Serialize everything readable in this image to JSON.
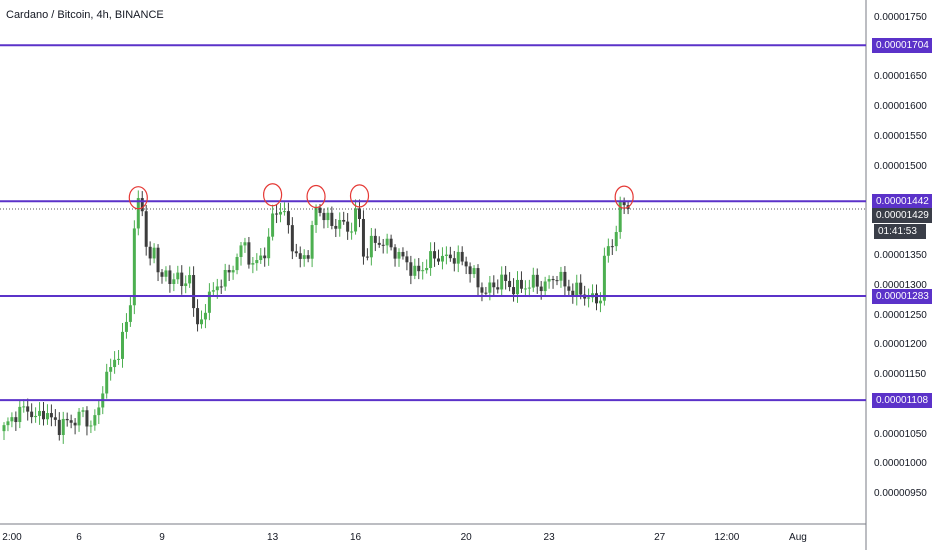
{
  "chart_data": {
    "type": "candlestick",
    "title": "Cardano / Bitcoin, 4h, BINANCE",
    "price_axis": {
      "min": 9e-06,
      "max": 1.78e-05,
      "ticks": [
        "0.00001750",
        "0.00001650",
        "0.00001600",
        "0.00001550",
        "0.00001500",
        "0.00001350",
        "0.00001300",
        "0.00001250",
        "0.00001200",
        "0.00001150",
        "0.00001050",
        "0.00001000",
        "0.00000950"
      ]
    },
    "time_axis": {
      "labels": [
        {
          "text": "2:00",
          "index": 0
        },
        {
          "text": "6",
          "index": 19
        },
        {
          "text": "9",
          "index": 40
        },
        {
          "text": "13",
          "index": 68
        },
        {
          "text": "16",
          "index": 89
        },
        {
          "text": "20",
          "index": 117
        },
        {
          "text": "23",
          "index": 138
        },
        {
          "text": "27",
          "index": 166
        },
        {
          "text": "12:00",
          "index": 183
        },
        {
          "text": "Aug",
          "index": 201
        }
      ]
    },
    "horizontal_lines": [
      {
        "price": 1.704e-05,
        "label": "0.00001704"
      },
      {
        "price": 1.442e-05,
        "label": "0.00001442"
      },
      {
        "price": 1.283e-05,
        "label": "0.00001283"
      },
      {
        "price": 1.108e-05,
        "label": "0.00001108"
      }
    ],
    "last_price": {
      "price": 1.429e-05,
      "label": "0.00001429",
      "countdown": "01:41:53"
    },
    "colors": {
      "up": "#26a69a",
      "up_candle": "#4caf50",
      "down": "#3c3c3c",
      "level_line": "#5b32c9",
      "annotation": "#e53935"
    },
    "annotations": [
      {
        "type": "circle",
        "index": 34,
        "price": 1.448e-05
      },
      {
        "type": "circle",
        "index": 68,
        "price": 1.453e-05
      },
      {
        "type": "circle",
        "index": 79,
        "price": 1.45e-05
      },
      {
        "type": "circle",
        "index": 90,
        "price": 1.451e-05
      },
      {
        "type": "circle",
        "index": 157,
        "price": 1.449e-05
      }
    ],
    "keypoints": [
      [
        0,
        1.06e-05
      ],
      [
        3,
        1.085e-05
      ],
      [
        6,
        1.095e-05
      ],
      [
        8,
        1.075e-05
      ],
      [
        10,
        1.09e-05
      ],
      [
        12,
        1.075e-05
      ],
      [
        14,
        1.065e-05
      ],
      [
        16,
        1.07e-05
      ],
      [
        18,
        1.075e-05
      ],
      [
        20,
        1.085e-05
      ],
      [
        22,
        1.065e-05
      ],
      [
        24,
        1.09e-05
      ],
      [
        25,
        1.135e-05
      ],
      [
        27,
        1.16e-05
      ],
      [
        29,
        1.19e-05
      ],
      [
        31,
        1.235e-05
      ],
      [
        32,
        1.275e-05
      ],
      [
        33,
        1.4e-05
      ],
      [
        34,
        1.44e-05
      ],
      [
        35,
        1.42e-05
      ],
      [
        36,
        1.38e-05
      ],
      [
        37,
        1.34e-05
      ],
      [
        38,
        1.36e-05
      ],
      [
        39,
        1.32e-05
      ],
      [
        40,
        1.33e-05
      ],
      [
        42,
        1.3e-05
      ],
      [
        44,
        1.33e-05
      ],
      [
        45,
        1.29e-05
      ],
      [
        46,
        1.3e-05
      ],
      [
        47,
        1.33e-05
      ],
      [
        48,
        1.26e-05
      ],
      [
        49,
        1.23e-05
      ],
      [
        50,
        1.24e-05
      ],
      [
        51,
        1.27e-05
      ],
      [
        53,
        1.29e-05
      ],
      [
        55,
        1.31e-05
      ],
      [
        57,
        1.32e-05
      ],
      [
        59,
        1.35e-05
      ],
      [
        61,
        1.37e-05
      ],
      [
        63,
        1.33e-05
      ],
      [
        65,
        1.35e-05
      ],
      [
        67,
        1.37e-05
      ],
      [
        68,
        1.42e-05
      ],
      [
        70,
        1.43e-05
      ],
      [
        72,
        1.4e-05
      ],
      [
        73,
        1.37e-05
      ],
      [
        74,
        1.35e-05
      ],
      [
        75,
        1.34e-05
      ],
      [
        77,
        1.36e-05
      ],
      [
        78,
        1.39e-05
      ],
      [
        79,
        1.43e-05
      ],
      [
        81,
        1.42e-05
      ],
      [
        83,
        1.4e-05
      ],
      [
        85,
        1.41e-05
      ],
      [
        87,
        1.39e-05
      ],
      [
        89,
        1.42e-05
      ],
      [
        90,
        1.41e-05
      ],
      [
        91,
        1.35e-05
      ],
      [
        93,
        1.37e-05
      ],
      [
        95,
        1.375e-05
      ],
      [
        98,
        1.365e-05
      ],
      [
        100,
        1.35e-05
      ],
      [
        102,
        1.34e-05
      ],
      [
        104,
        1.32e-05
      ],
      [
        106,
        1.33e-05
      ],
      [
        108,
        1.345e-05
      ],
      [
        110,
        1.35e-05
      ],
      [
        112,
        1.345e-05
      ],
      [
        114,
        1.35e-05
      ],
      [
        116,
        1.34e-05
      ],
      [
        118,
        1.33e-05
      ],
      [
        120,
        1.3e-05
      ],
      [
        122,
        1.29e-05
      ],
      [
        124,
        1.3e-05
      ],
      [
        126,
        1.31e-05
      ],
      [
        128,
        1.3e-05
      ],
      [
        130,
        1.295e-05
      ],
      [
        132,
        1.3e-05
      ],
      [
        134,
        1.305e-05
      ],
      [
        136,
        1.3e-05
      ],
      [
        138,
        1.305e-05
      ],
      [
        140,
        1.32e-05
      ],
      [
        142,
        1.3e-05
      ],
      [
        144,
        1.29e-05
      ],
      [
        146,
        1.29e-05
      ],
      [
        148,
        1.28e-05
      ],
      [
        150,
        1.275e-05
      ],
      [
        151,
        1.285e-05
      ],
      [
        152,
        1.34e-05
      ],
      [
        153,
        1.365e-05
      ],
      [
        154,
        1.37e-05
      ],
      [
        155,
        1.4e-05
      ],
      [
        156,
        1.425e-05
      ],
      [
        157,
        1.44e-05
      ],
      [
        158,
        1.429e-05
      ]
    ]
  }
}
